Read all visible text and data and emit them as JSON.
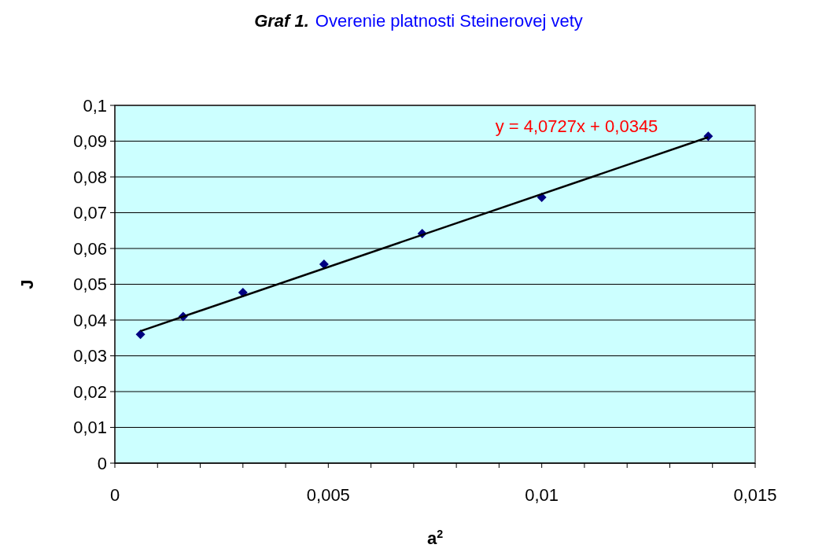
{
  "chart_data": {
    "type": "scatter",
    "title": "Graf 1.",
    "subtitle": "Overenie platnosti Steinerovej vety",
    "xlabel": "a$^{2}$",
    "ylabel": "J",
    "xlim": [
      0,
      0.015
    ],
    "xticks": [
      0,
      {
        "value": 0.001,
        "label": null
      },
      {
        "value": 0.002,
        "label": null
      },
      {
        "value": 0.003,
        "label": null
      },
      {
        "value": 0.004,
        "label": null
      },
      {
        "value": 0.005,
        "label": "0,005"
      },
      {
        "value": 0.006,
        "label": null
      },
      {
        "value": 0.007,
        "label": null
      },
      {
        "value": 0.008,
        "label": null
      },
      {
        "value": 0.009,
        "label": null
      },
      {
        "value": 0.01,
        "label": "0,01"
      },
      {
        "value": 0.011,
        "label": null
      },
      {
        "value": 0.012,
        "label": null
      },
      {
        "value": 0.013,
        "label": null
      },
      {
        "value": 0.014,
        "label": null
      },
      {
        "value": 0.015,
        "label": "0,015"
      }
    ],
    "ylim": [
      0,
      0.1
    ],
    "yticks": [
      0,
      {
        "value": 0.01,
        "label": "0,01"
      },
      {
        "value": 0.02,
        "label": "0,02"
      },
      {
        "value": 0.03,
        "label": "0,03"
      },
      {
        "value": 0.04,
        "label": "0,04"
      },
      {
        "value": 0.05,
        "label": "0,05"
      },
      {
        "value": 0.06,
        "label": "0,06"
      },
      {
        "value": 0.07,
        "label": "0,07"
      },
      {
        "value": 0.08,
        "label": "0,08"
      },
      {
        "value": 0.09,
        "label": "0,09"
      },
      {
        "value": 0.1,
        "label": "0,1"
      }
    ],
    "grid": "y",
    "series": [
      {
        "color": "#000080",
        "marker": "diamond",
        "x": [
          0.0006,
          0.0016,
          0.003,
          0.0049,
          0.0072,
          0.01,
          0.0139
        ],
        "values": [
          0.036,
          0.041,
          0.0477,
          0.0556,
          0.0642,
          0.0743,
          0.0914
        ]
      },
      {
        "type": "line",
        "color": "#000000",
        "marker": "none",
        "line_style": "solid",
        "x": [
          0.0006,
          0.0139
        ],
        "values": [
          0.0369,
          0.0911
        ]
      }
    ],
    "annotations": [
      "y = 4,0727x + 0,0345"
    ]
  }
}
